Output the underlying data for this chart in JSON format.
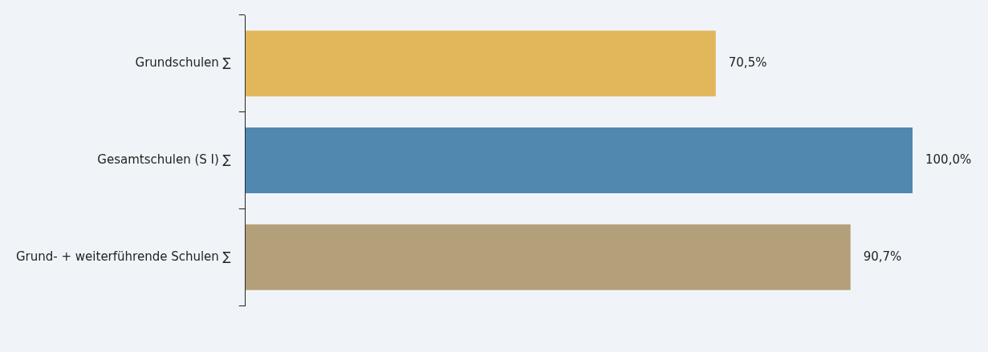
{
  "chart_data": {
    "type": "bar",
    "orientation": "horizontal",
    "categories": [
      "Grundschulen ∑",
      "Gesamtschulen (S I) ∑",
      "Grund- + weiterführende Schulen ∑"
    ],
    "values": [
      70.5,
      100.0,
      90.7
    ],
    "colors": [
      "#e2b65a",
      "#5088b0",
      "#b3a07a"
    ],
    "value_labels": [
      "70,5%",
      "100,0%",
      "90,7%"
    ]
  }
}
